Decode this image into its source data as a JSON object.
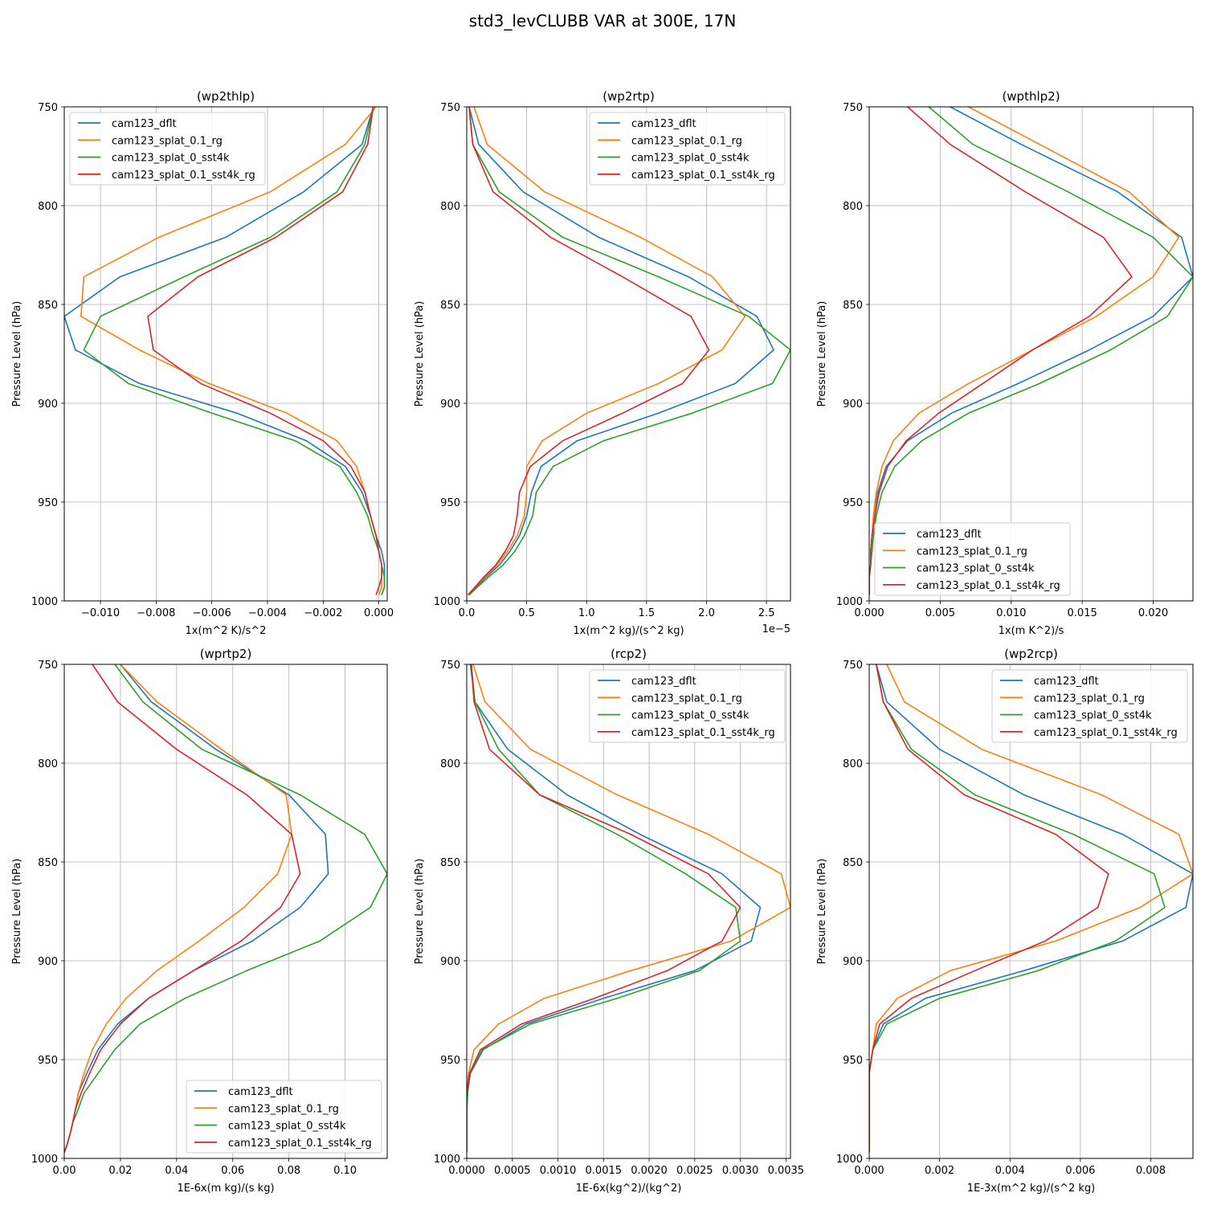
{
  "figure": {
    "suptitle": "std3_levCLUBB VAR at 300E, 17N"
  },
  "series_names": [
    "cam123_dflt",
    "cam123_splat_0.1_rg",
    "cam123_splat_0_sst4k",
    "cam123_splat_0.1_sst4k_rg"
  ],
  "series_colors": [
    "#1f77b4",
    "#ff7f0e",
    "#2ca02c",
    "#d62728"
  ],
  "chart_data": [
    {
      "type": "line",
      "title": "(wp2thlp)",
      "xlabel": "1x(m^2 K)/s^2",
      "ylabel": "Pressure Level (hPa)",
      "xlim": [
        -0.0113,
        0.0003
      ],
      "ylim": [
        1000,
        750
      ],
      "xticks": [
        -0.01,
        -0.008,
        -0.006,
        -0.004,
        -0.002,
        0.0
      ],
      "xtick_labels": [
        "−0.010",
        "−0.008",
        "−0.006",
        "−0.004",
        "−0.002",
        "0.000"
      ],
      "yticks": [
        750,
        800,
        850,
        900,
        950,
        1000
      ],
      "legend": "upper-left",
      "grid": true,
      "y": [
        750,
        769,
        793,
        816,
        836,
        856,
        873,
        890,
        905,
        919,
        932,
        945,
        957,
        967,
        975,
        982,
        988,
        993,
        997
      ],
      "series": [
        {
          "name": "cam123_dflt",
          "values": [
            -0.0002,
            -0.0006,
            -0.0027,
            -0.0055,
            -0.0093,
            -0.0113,
            -0.0109,
            -0.0086,
            -0.0051,
            -0.0026,
            -0.0012,
            -0.0006,
            -0.0003,
            -0.0001,
            0.0001,
            0.0002,
            0.0002,
            0.0002,
            0.0001
          ]
        },
        {
          "name": "cam123_splat_0.1_rg",
          "values": [
            -0.0001,
            -0.0012,
            -0.0039,
            -0.0079,
            -0.0106,
            -0.0107,
            -0.0086,
            -0.0061,
            -0.0033,
            -0.0015,
            -0.0008,
            -0.0005,
            -0.0003,
            -0.0001,
            0.0,
            0.0001,
            0.0001,
            0.0001,
            0.0
          ]
        },
        {
          "name": "cam123_splat_0_sst4k",
          "values": [
            -0.0002,
            -0.0005,
            -0.0015,
            -0.0039,
            -0.007,
            -0.01,
            -0.0106,
            -0.009,
            -0.006,
            -0.003,
            -0.0014,
            -0.0008,
            -0.0004,
            -0.0002,
            0.0,
            0.0001,
            0.0002,
            0.0002,
            0.0001
          ]
        },
        {
          "name": "cam123_splat_0.1_sst4k_rg",
          "values": [
            -0.0002,
            -0.0004,
            -0.0013,
            -0.0037,
            -0.0065,
            -0.0083,
            -0.0081,
            -0.0064,
            -0.0039,
            -0.002,
            -0.001,
            -0.0005,
            -0.0003,
            -0.0001,
            0.0,
            0.0001,
            0.0001,
            0.0,
            -0.0001
          ]
        }
      ]
    },
    {
      "type": "line",
      "title": "(wp2rtp)",
      "xlabel": "1x(m^2 kg)/(s^2 kg)",
      "ylabel": "Pressure Level (hPa)",
      "offset_text": "1e−5",
      "xlim": [
        0,
        2.7
      ],
      "ylim": [
        1000,
        750
      ],
      "xticks": [
        0,
        0.5,
        1.0,
        1.5,
        2.0,
        2.5
      ],
      "xtick_labels": [
        "0.0",
        "0.5",
        "1.0",
        "1.5",
        "2.0",
        "2.5"
      ],
      "yticks": [
        750,
        800,
        850,
        900,
        950,
        1000
      ],
      "legend": "upper-right",
      "grid": true,
      "y": [
        750,
        769,
        793,
        816,
        836,
        856,
        873,
        890,
        905,
        919,
        932,
        945,
        957,
        967,
        975,
        982,
        988,
        993,
        997
      ],
      "series": [
        {
          "name": "cam123_dflt",
          "values": [
            0.02,
            0.1,
            0.47,
            1.1,
            1.85,
            2.42,
            2.56,
            2.24,
            1.6,
            0.92,
            0.62,
            0.54,
            0.5,
            0.44,
            0.36,
            0.27,
            0.16,
            0.08,
            0.02
          ]
        },
        {
          "name": "cam123_splat_0.1_rg",
          "values": [
            0.06,
            0.17,
            0.65,
            1.45,
            2.05,
            2.32,
            2.13,
            1.6,
            1.0,
            0.63,
            0.5,
            0.5,
            0.48,
            0.42,
            0.34,
            0.25,
            0.15,
            0.07,
            0.01
          ]
        },
        {
          "name": "cam123_splat_0_sst4k",
          "values": [
            0.02,
            0.05,
            0.27,
            0.8,
            1.6,
            2.35,
            2.7,
            2.55,
            1.88,
            1.14,
            0.72,
            0.58,
            0.55,
            0.48,
            0.4,
            0.3,
            0.18,
            0.09,
            0.02
          ]
        },
        {
          "name": "cam123_splat_0.1_sst4k_rg",
          "values": [
            0.02,
            0.05,
            0.22,
            0.7,
            1.3,
            1.87,
            2.02,
            1.8,
            1.3,
            0.8,
            0.53,
            0.44,
            0.42,
            0.39,
            0.32,
            0.24,
            0.14,
            0.07,
            0.01
          ]
        }
      ]
    },
    {
      "type": "line",
      "title": "(wpthlp2)",
      "xlabel": "1x(m K^2)/s",
      "ylabel": "Pressure Level (hPa)",
      "xlim": [
        0,
        0.0228
      ],
      "ylim": [
        1000,
        750
      ],
      "xticks": [
        0,
        0.005,
        0.01,
        0.015,
        0.02
      ],
      "xtick_labels": [
        "0.000",
        "0.005",
        "0.010",
        "0.015",
        "0.020"
      ],
      "yticks": [
        750,
        800,
        850,
        900,
        950,
        1000
      ],
      "legend": "lower-left",
      "grid": true,
      "y": [
        750,
        769,
        793,
        816,
        836,
        856,
        873,
        890,
        905,
        919,
        932,
        945,
        957,
        967,
        975,
        982,
        988,
        993,
        997
      ],
      "series": [
        {
          "name": "cam123_dflt",
          "values": [
            0.0057,
            0.0107,
            0.0175,
            0.022,
            0.0228,
            0.02,
            0.0155,
            0.0105,
            0.0058,
            0.0027,
            0.0012,
            0.0006,
            0.0003,
            0.0002,
            0.0001,
            0.0001,
            0.0,
            0.0,
            0.0
          ]
        },
        {
          "name": "cam123_splat_0.1_rg",
          "values": [
            0.007,
            0.012,
            0.0183,
            0.0218,
            0.02,
            0.016,
            0.0115,
            0.007,
            0.0035,
            0.0017,
            0.0009,
            0.0005,
            0.0003,
            0.0002,
            0.0001,
            0.0001,
            0.0,
            0.0,
            0.0
          ]
        },
        {
          "name": "cam123_splat_0_sst4k",
          "values": [
            0.0042,
            0.0073,
            0.014,
            0.02,
            0.0228,
            0.021,
            0.017,
            0.012,
            0.007,
            0.0037,
            0.0018,
            0.0009,
            0.0005,
            0.0003,
            0.0002,
            0.0001,
            0.0,
            0.0,
            0.0
          ]
        },
        {
          "name": "cam123_splat_0.1_sst4k_rg",
          "values": [
            0.0027,
            0.0057,
            0.011,
            0.0165,
            0.0185,
            0.0155,
            0.0115,
            0.008,
            0.0049,
            0.0026,
            0.0013,
            0.0007,
            0.0004,
            0.0002,
            0.0001,
            0.0001,
            0.0,
            0.0,
            0.0
          ]
        }
      ]
    },
    {
      "type": "line",
      "title": "(wprtp2)",
      "xlabel": "1E-6x(m kg)/(s kg)",
      "ylabel": "Pressure Level (hPa)",
      "xlim": [
        0,
        0.115
      ],
      "ylim": [
        1000,
        750
      ],
      "xticks": [
        0,
        0.02,
        0.04,
        0.06,
        0.08,
        0.1
      ],
      "xtick_labels": [
        "0.00",
        "0.02",
        "0.04",
        "0.06",
        "0.08",
        "0.10"
      ],
      "yticks": [
        750,
        800,
        850,
        900,
        950,
        1000
      ],
      "legend": "lower-right",
      "grid": true,
      "y": [
        750,
        769,
        793,
        816,
        836,
        856,
        873,
        890,
        905,
        919,
        932,
        945,
        957,
        967,
        975,
        982,
        988,
        993,
        997
      ],
      "series": [
        {
          "name": "cam123_dflt",
          "values": [
            0.02,
            0.031,
            0.054,
            0.08,
            0.093,
            0.094,
            0.084,
            0.067,
            0.046,
            0.03,
            0.019,
            0.012,
            0.008,
            0.005,
            0.004,
            0.003,
            0.002,
            0.001,
            0.0
          ]
        },
        {
          "name": "cam123_splat_0.1_rg",
          "values": [
            0.02,
            0.033,
            0.056,
            0.079,
            0.081,
            0.076,
            0.064,
            0.048,
            0.033,
            0.022,
            0.015,
            0.01,
            0.007,
            0.005,
            0.004,
            0.003,
            0.002,
            0.001,
            0.0
          ]
        },
        {
          "name": "cam123_splat_0_sst4k",
          "values": [
            0.018,
            0.028,
            0.049,
            0.084,
            0.107,
            0.115,
            0.109,
            0.091,
            0.065,
            0.043,
            0.027,
            0.018,
            0.012,
            0.007,
            0.005,
            0.003,
            0.002,
            0.001,
            0.0
          ]
        },
        {
          "name": "cam123_splat_0.1_sst4k_rg",
          "values": [
            0.01,
            0.019,
            0.04,
            0.065,
            0.081,
            0.084,
            0.077,
            0.063,
            0.046,
            0.03,
            0.02,
            0.013,
            0.009,
            0.006,
            0.004,
            0.003,
            0.002,
            0.001,
            0.0
          ]
        }
      ]
    },
    {
      "type": "line",
      "title": "(rcp2)",
      "xlabel": "1E-6x(kg^2)/(kg^2)",
      "ylabel": "Pressure Level (hPa)",
      "xlim": [
        0,
        0.00355
      ],
      "ylim": [
        1000,
        750
      ],
      "xticks": [
        0,
        0.0005,
        0.001,
        0.0015,
        0.002,
        0.0025,
        0.003,
        0.0035
      ],
      "xtick_labels": [
        "0.0000",
        "0.0005",
        "0.0010",
        "0.0015",
        "0.0020",
        "0.0025",
        "0.0030",
        "0.0035"
      ],
      "yticks": [
        750,
        800,
        850,
        900,
        950,
        1000
      ],
      "legend": "upper-right",
      "grid": true,
      "y": [
        750,
        769,
        793,
        816,
        836,
        856,
        873,
        890,
        905,
        919,
        932,
        945,
        957,
        967,
        975,
        982,
        988,
        993,
        997
      ],
      "series": [
        {
          "name": "cam123_dflt",
          "values": [
            4e-05,
            9e-05,
            0.00045,
            0.0011,
            0.0019,
            0.0028,
            0.00322,
            0.00312,
            0.0025,
            0.0015,
            0.00065,
            0.00018,
            4e-05,
            1e-05,
            0.0,
            0.0,
            0.0,
            0.0,
            0.0
          ]
        },
        {
          "name": "cam123_splat_0.1_rg",
          "values": [
            7e-05,
            0.0002,
            0.0007,
            0.00165,
            0.00265,
            0.00345,
            0.00355,
            0.0029,
            0.0018,
            0.00085,
            0.00035,
            8e-05,
            2e-05,
            0.0,
            0.0,
            0.0,
            0.0,
            0.0,
            0.0
          ]
        },
        {
          "name": "cam123_splat_0_sst4k",
          "values": [
            5e-05,
            9e-05,
            0.00035,
            0.0008,
            0.00165,
            0.0024,
            0.00295,
            0.003,
            0.00255,
            0.00165,
            0.0007,
            0.00017,
            3e-05,
            1e-05,
            0.0,
            0.0,
            0.0,
            0.0,
            0.0
          ]
        },
        {
          "name": "cam123_splat_0.1_sst4k_rg",
          "values": [
            5e-05,
            8e-05,
            0.00025,
            0.0008,
            0.0018,
            0.00265,
            0.003,
            0.0028,
            0.0022,
            0.0014,
            0.0006,
            0.00015,
            3e-05,
            0.0,
            0.0,
            0.0,
            0.0,
            0.0,
            0.0
          ]
        }
      ]
    },
    {
      "type": "line",
      "title": "(wp2rcp)",
      "xlabel": "1E-3x(m^2 kg)/(s^2 kg)",
      "ylabel": "Pressure Level (hPa)",
      "xlim": [
        0,
        0.0092
      ],
      "ylim": [
        1000,
        750
      ],
      "xticks": [
        0,
        0.002,
        0.004,
        0.006,
        0.008
      ],
      "xtick_labels": [
        "0.000",
        "0.002",
        "0.004",
        "0.006",
        "0.008"
      ],
      "yticks": [
        750,
        800,
        850,
        900,
        950,
        1000
      ],
      "legend": "upper-right",
      "grid": true,
      "y": [
        750,
        769,
        793,
        816,
        836,
        856,
        873,
        890,
        905,
        919,
        932,
        945,
        957,
        967,
        975,
        982,
        988,
        993,
        997
      ],
      "series": [
        {
          "name": "cam123_dflt",
          "values": [
            0.0002,
            0.0005,
            0.002,
            0.0044,
            0.0072,
            0.0092,
            0.009,
            0.0072,
            0.0044,
            0.0016,
            0.0004,
            0.0001,
            0.0,
            0.0,
            0.0,
            0.0,
            0.0,
            0.0,
            0.0
          ]
        },
        {
          "name": "cam123_splat_0.1_rg",
          "values": [
            0.0005,
            0.001,
            0.0032,
            0.0066,
            0.0088,
            0.0092,
            0.0077,
            0.0053,
            0.0023,
            0.0008,
            0.0002,
            0.0001,
            0.0,
            0.0,
            0.0,
            0.0,
            0.0,
            0.0,
            0.0
          ]
        },
        {
          "name": "cam123_splat_0_sst4k",
          "values": [
            0.0002,
            0.0004,
            0.0012,
            0.003,
            0.0058,
            0.0081,
            0.0084,
            0.007,
            0.0048,
            0.002,
            0.0005,
            0.0001,
            0.0,
            0.0,
            0.0,
            0.0,
            0.0,
            0.0,
            0.0
          ]
        },
        {
          "name": "cam123_splat_0.1_sst4k_rg",
          "values": [
            0.0002,
            0.0004,
            0.0011,
            0.0027,
            0.0053,
            0.0068,
            0.0065,
            0.005,
            0.003,
            0.0012,
            0.0003,
            0.0001,
            0.0,
            0.0,
            0.0,
            0.0,
            0.0,
            0.0,
            0.0
          ]
        }
      ]
    }
  ]
}
